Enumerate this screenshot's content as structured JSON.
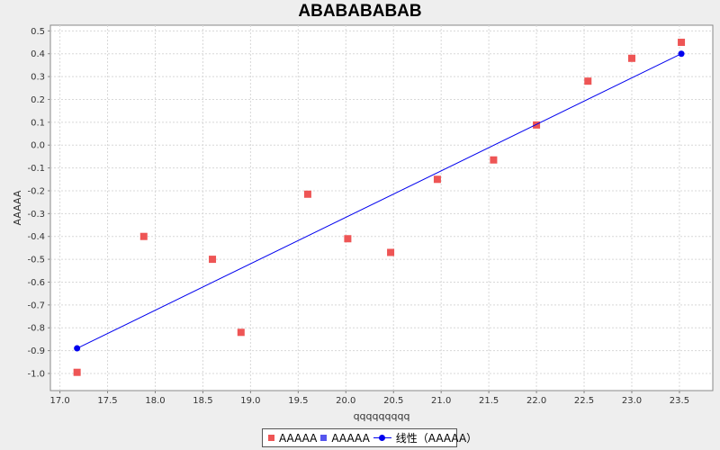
{
  "chart_data": {
    "type": "scatter",
    "title": "ABABABABAB",
    "xlabel": "qqqqqqqqq",
    "ylabel": "AAAAA",
    "xlim": [
      16.9,
      23.85
    ],
    "ylim": [
      -1.075,
      0.525
    ],
    "grid": true,
    "legend_position": "bottom",
    "x_ticks": [
      "17.0",
      "17.5",
      "18.0",
      "18.5",
      "19.0",
      "19.5",
      "20.0",
      "20.5",
      "21.0",
      "21.5",
      "22.0",
      "22.5",
      "23.0",
      "23.5"
    ],
    "y_ticks": [
      "0.5",
      "0.4",
      "0.3",
      "0.2",
      "0.1",
      "0.0",
      "-0.1",
      "-0.2",
      "-0.3",
      "-0.4",
      "-0.5",
      "-0.6",
      "-0.7",
      "-0.8",
      "-0.9",
      "-1.0"
    ],
    "series": [
      {
        "name": "AAAAA",
        "kind": "scatter",
        "marker": "square",
        "color": "#ee5555",
        "points": [
          [
            17.18,
            -0.995
          ],
          [
            17.88,
            -0.4
          ],
          [
            18.6,
            -0.5
          ],
          [
            18.9,
            -0.82
          ],
          [
            19.6,
            -0.215
          ],
          [
            20.02,
            -0.41
          ],
          [
            20.47,
            -0.47
          ],
          [
            20.96,
            -0.15
          ],
          [
            21.55,
            -0.065
          ],
          [
            22.0,
            0.088
          ],
          [
            22.54,
            0.28
          ],
          [
            23.0,
            0.38
          ],
          [
            23.52,
            0.45
          ]
        ]
      },
      {
        "name": "AAAAA",
        "kind": "scatter",
        "marker": "square",
        "color": "#5555ee",
        "points": []
      },
      {
        "name": "线性（AAAAA）",
        "kind": "line",
        "marker": "circle",
        "color": "#0000ee",
        "points": [
          [
            17.18,
            -0.89
          ],
          [
            23.52,
            0.4
          ]
        ]
      }
    ]
  }
}
